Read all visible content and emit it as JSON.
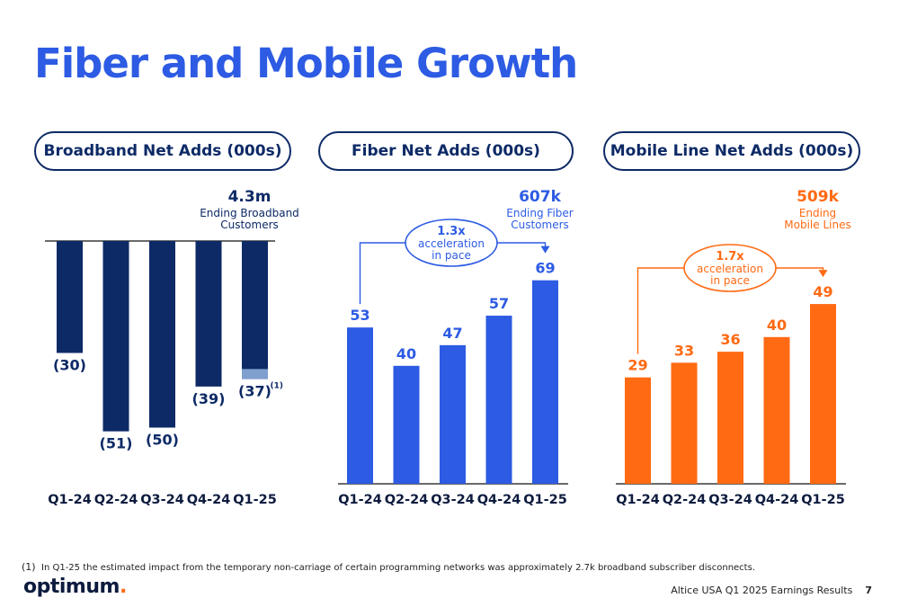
{
  "page": {
    "title": "Fiber and Mobile Growth",
    "footnote_marker": "(1)",
    "footnote_text": "In Q1-25 the estimated impact from the temporary non-carriage of certain programming networks was approximately 2.7k broadband subscriber disconnects.",
    "logo_text": "optimum",
    "logo_dot": ".",
    "footer_text": "Altice USA Q1 2025 Earnings Results",
    "page_number": "7"
  },
  "colors": {
    "title": "#2d5be3",
    "navy": "#0d2a66",
    "navy_light": "#7f9fcf",
    "blue": "#2d5be3",
    "orange": "#ff6a13"
  },
  "chart_data": [
    {
      "type": "bar",
      "title": "Broadband Net Adds (000s)",
      "categories": [
        "Q1-24",
        "Q2-24",
        "Q3-24",
        "Q4-24",
        "Q1-25"
      ],
      "values": [
        -30,
        -51,
        -50,
        -39,
        -37
      ],
      "value_labels": [
        "(30)",
        "(51)",
        "(50)",
        "(39)",
        "(37)"
      ],
      "impact_segment": {
        "category": "Q1-25",
        "value": -2.7,
        "marker": "(1)"
      },
      "callout_value": "4.3m",
      "callout_text": [
        "Ending Broadband",
        "Customers"
      ],
      "color": "#0d2a66",
      "ylim": [
        -55,
        0
      ]
    },
    {
      "type": "bar",
      "title": "Fiber Net Adds (000s)",
      "categories": [
        "Q1-24",
        "Q2-24",
        "Q3-24",
        "Q4-24",
        "Q1-25"
      ],
      "values": [
        53,
        40,
        47,
        57,
        69
      ],
      "value_labels": [
        "53",
        "40",
        "47",
        "57",
        "69"
      ],
      "callout_value": "607k",
      "callout_text": [
        "Ending Fiber",
        "Customers"
      ],
      "acceleration": [
        "1.3x",
        "acceleration",
        "in pace"
      ],
      "color": "#2d5be3",
      "ylim": [
        0,
        75
      ]
    },
    {
      "type": "bar",
      "title": "Mobile Line Net Adds (000s)",
      "categories": [
        "Q1-24",
        "Q2-24",
        "Q3-24",
        "Q4-24",
        "Q1-25"
      ],
      "values": [
        29,
        33,
        36,
        40,
        49
      ],
      "value_labels": [
        "29",
        "33",
        "36",
        "40",
        "49"
      ],
      "callout_value": "509k",
      "callout_text": [
        "Ending",
        "Mobile Lines"
      ],
      "acceleration": [
        "1.7x",
        "acceleration",
        "in pace"
      ],
      "color": "#ff6a13",
      "ylim": [
        0,
        60
      ]
    }
  ]
}
